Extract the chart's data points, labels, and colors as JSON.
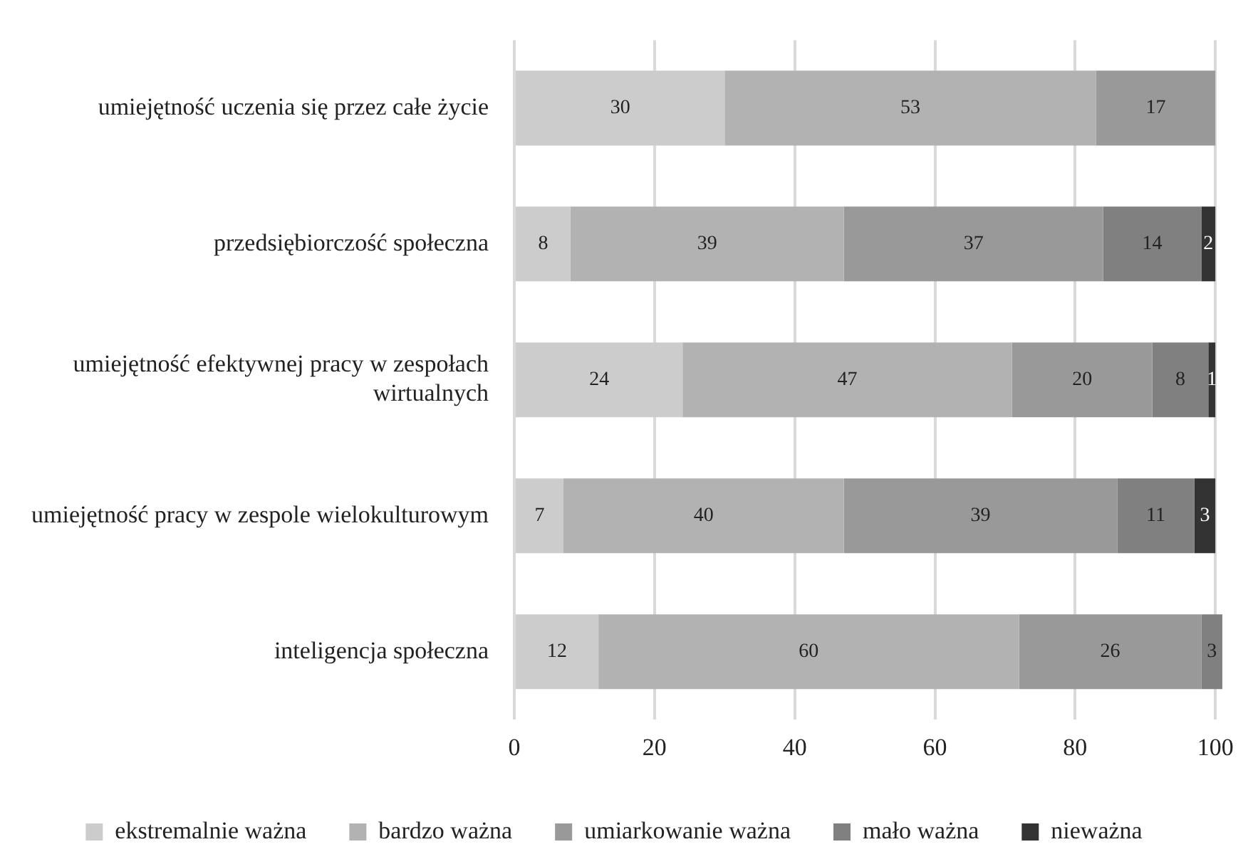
{
  "chart_data": {
    "type": "bar",
    "orientation": "horizontal",
    "stacked": true,
    "categories": [
      "umiejętność uczenia się przez całe życie",
      "przedsiębiorczość społeczna",
      "umiejętność efektywnej pracy w zespołach wirtualnych",
      "umiejętność pracy w zespole wielokulturowym",
      "inteligencja społeczna"
    ],
    "series": [
      {
        "name": "ekstremalnie ważna",
        "color": "#cccccc",
        "values": [
          30,
          8,
          24,
          7,
          12
        ]
      },
      {
        "name": "bardzo ważna",
        "color": "#b2b2b2",
        "values": [
          53,
          39,
          47,
          40,
          60
        ]
      },
      {
        "name": "umiarkowanie ważna",
        "color": "#999999",
        "values": [
          17,
          37,
          20,
          39,
          26
        ]
      },
      {
        "name": "mało ważna",
        "color": "#808080",
        "values": [
          null,
          14,
          8,
          11,
          3
        ]
      },
      {
        "name": "nieważna",
        "color": "#333333",
        "values": [
          null,
          2,
          1,
          3,
          null
        ]
      }
    ],
    "xlim": [
      0,
      101
    ],
    "xticks": [
      0,
      20,
      40,
      60,
      80,
      100
    ],
    "grid": "x",
    "legend": "bottom",
    "data_labels": true
  }
}
